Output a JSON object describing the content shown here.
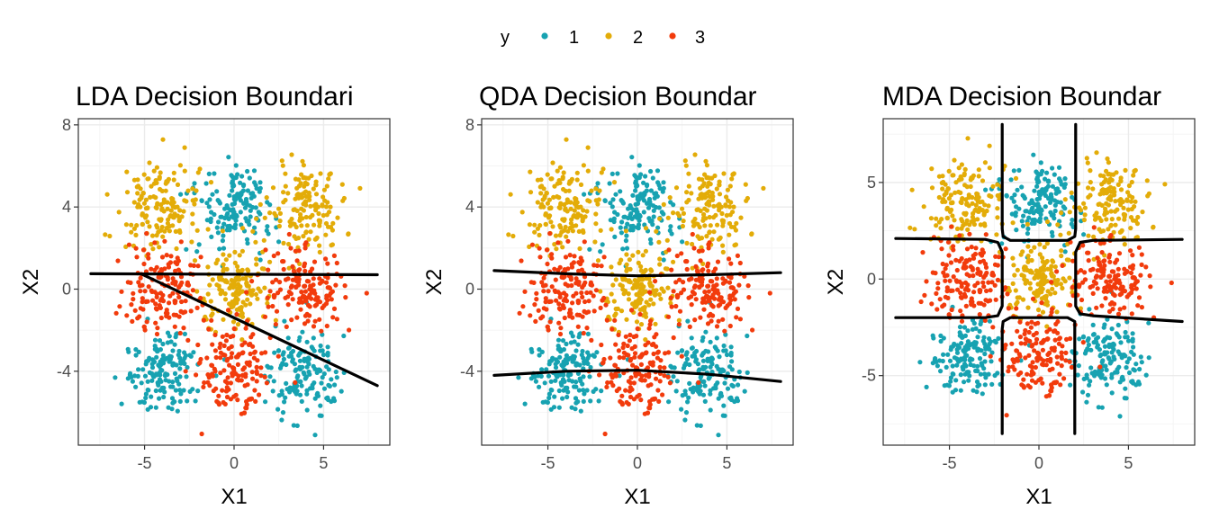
{
  "legend": {
    "title": "y",
    "entries": [
      {
        "label": "1",
        "color": "#17A2B1"
      },
      {
        "label": "2",
        "color": "#E3AC08"
      },
      {
        "label": "3",
        "color": "#F23B0C"
      }
    ]
  },
  "chart_data": [
    {
      "type": "scatter",
      "title": "LDA Decision Boundari",
      "xlabel": "X1",
      "ylabel": "X2",
      "xlim": [
        -8.7,
        8.7
      ],
      "ylim": [
        -7.6,
        8.3
      ],
      "xticks": [
        -5,
        0,
        5
      ],
      "xtick_labels": [
        "-5",
        "0",
        "5"
      ],
      "yticks": [
        -4,
        0,
        4,
        8
      ],
      "ytick_labels": [
        "-4",
        "0",
        "4",
        "8"
      ],
      "grid": true,
      "series": [
        {
          "name": "1",
          "clusters": [
            [
              0,
              4
            ],
            [
              -4,
              -4
            ],
            [
              4,
              -4
            ]
          ],
          "points_per_cluster": 150,
          "spread": 1.05
        },
        {
          "name": "2",
          "clusters": [
            [
              -4,
              4
            ],
            [
              4,
              4
            ],
            [
              0,
              0
            ]
          ],
          "points_per_cluster": 150,
          "spread": 1.05
        },
        {
          "name": "3",
          "clusters": [
            [
              -4,
              0
            ],
            [
              4,
              0
            ],
            [
              0,
              -4
            ]
          ],
          "points_per_cluster": 150,
          "spread": 1.05
        }
      ],
      "boundaries": [
        [
          [
            -8,
            0.75
          ],
          [
            8,
            0.7
          ]
        ],
        [
          [
            -5.2,
            0.75
          ],
          [
            8,
            -4.7
          ]
        ]
      ]
    },
    {
      "type": "scatter",
      "title": "QDA Decision Boundar",
      "xlabel": "X1",
      "ylabel": "X2",
      "xlim": [
        -8.7,
        8.7
      ],
      "ylim": [
        -7.6,
        8.3
      ],
      "xticks": [
        -5,
        0,
        5
      ],
      "xtick_labels": [
        "-5",
        "0",
        "5"
      ],
      "yticks": [
        -4,
        0,
        4,
        8
      ],
      "ytick_labels": [
        "-4",
        "0",
        "4",
        "8"
      ],
      "grid": true,
      "series": [
        {
          "name": "1",
          "clusters": [
            [
              0,
              4
            ],
            [
              -4,
              -4
            ],
            [
              4,
              -4
            ]
          ],
          "points_per_cluster": 150,
          "spread": 1.05
        },
        {
          "name": "2",
          "clusters": [
            [
              -4,
              4
            ],
            [
              4,
              4
            ],
            [
              0,
              0
            ]
          ],
          "points_per_cluster": 150,
          "spread": 1.05
        },
        {
          "name": "3",
          "clusters": [
            [
              -4,
              0
            ],
            [
              4,
              0
            ],
            [
              0,
              -4
            ]
          ],
          "points_per_cluster": 150,
          "spread": 1.05
        }
      ],
      "boundaries": [
        [
          [
            -8,
            0.9
          ],
          [
            -4,
            0.75
          ],
          [
            0,
            0.65
          ],
          [
            4,
            0.7
          ],
          [
            8,
            0.8
          ]
        ],
        [
          [
            -8,
            -4.2
          ],
          [
            -4,
            -4.0
          ],
          [
            0,
            -3.95
          ],
          [
            4,
            -4.15
          ],
          [
            8,
            -4.5
          ]
        ]
      ]
    },
    {
      "type": "scatter",
      "title": "MDA Decision Boundar",
      "xlabel": "X1",
      "ylabel": "X2",
      "xlim": [
        -8.7,
        8.7
      ],
      "ylim": [
        -8.6,
        8.3
      ],
      "xticks": [
        -5,
        0,
        5
      ],
      "xtick_labels": [
        "-5",
        "0",
        "5"
      ],
      "yticks": [
        -5,
        0,
        5
      ],
      "ytick_labels": [
        "-5",
        "0",
        "5"
      ],
      "grid": true,
      "series": [
        {
          "name": "1",
          "clusters": [
            [
              0,
              4
            ],
            [
              -4,
              -4
            ],
            [
              4,
              -4
            ]
          ],
          "points_per_cluster": 150,
          "spread": 1.05
        },
        {
          "name": "2",
          "clusters": [
            [
              -4,
              4
            ],
            [
              4,
              4
            ],
            [
              0,
              0
            ]
          ],
          "points_per_cluster": 150,
          "spread": 1.05
        },
        {
          "name": "3",
          "clusters": [
            [
              -4,
              0
            ],
            [
              4,
              0
            ],
            [
              0,
              -4
            ]
          ],
          "points_per_cluster": 150,
          "spread": 1.05
        }
      ],
      "boundaries": [
        [
          [
            -2.05,
            8
          ],
          [
            -2.05,
            2.6
          ],
          [
            -2.0,
            2.2
          ],
          [
            -1.6,
            2.0
          ],
          [
            1.6,
            2.0
          ],
          [
            2.0,
            2.2
          ],
          [
            2.05,
            2.6
          ],
          [
            2.05,
            8
          ]
        ],
        [
          [
            -8,
            2.1
          ],
          [
            -3,
            2.05
          ],
          [
            -2.3,
            1.9
          ],
          [
            -2.05,
            1.4
          ],
          [
            -2.05,
            -1.4
          ],
          [
            -2.3,
            -1.9
          ],
          [
            -3,
            -2.0
          ],
          [
            -8,
            -2.0
          ]
        ],
        [
          [
            8,
            2.05
          ],
          [
            3,
            2.0
          ],
          [
            2.3,
            1.9
          ],
          [
            2.05,
            1.4
          ],
          [
            2.05,
            -1.4
          ],
          [
            2.3,
            -1.8
          ],
          [
            3,
            -1.9
          ],
          [
            8,
            -2.2
          ]
        ],
        [
          [
            -2.05,
            -8
          ],
          [
            -2.05,
            -2.6
          ],
          [
            -2.0,
            -2.2
          ],
          [
            -1.6,
            -2.0
          ],
          [
            1.6,
            -2.0
          ],
          [
            2.0,
            -2.2
          ],
          [
            2.0,
            -2.6
          ],
          [
            2.0,
            -8
          ]
        ]
      ]
    }
  ]
}
